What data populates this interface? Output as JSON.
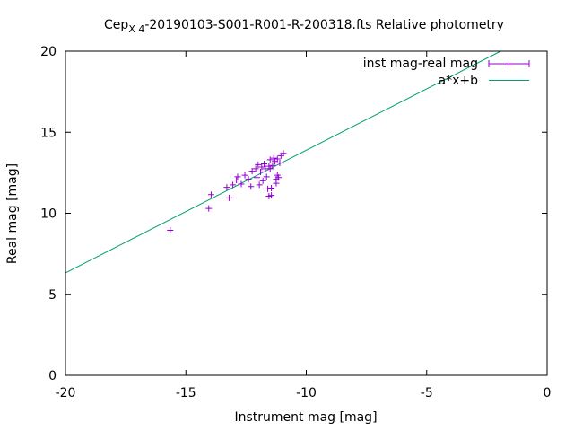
{
  "chart_data": {
    "type": "scatter",
    "title_main": "Cep",
    "title_sub": "X 4",
    "title_rest": "-20190103-S001-R001-R-200318.fts Relative photometry",
    "xlabel": "Instrument mag [mag]",
    "ylabel": "Real mag [mag]",
    "xlim": [
      -20,
      0
    ],
    "ylim": [
      0,
      20
    ],
    "xticks": [
      -20,
      -15,
      -10,
      -5,
      0
    ],
    "yticks": [
      0,
      5,
      10,
      15,
      20
    ],
    "xtick_labels": [
      "-20",
      "-15",
      "-10",
      "-5",
      "0"
    ],
    "ytick_labels": [
      "0",
      "5",
      "10",
      "15",
      "20"
    ],
    "grid": false,
    "legend_position": "top-right",
    "series": [
      {
        "name": "inst mag-real mag",
        "kind": "points",
        "marker": "plus",
        "color": "#9400d3",
        "points": [
          [
            -15.65,
            8.95
          ],
          [
            -14.05,
            10.3
          ],
          [
            -13.95,
            11.15
          ],
          [
            -13.3,
            11.6
          ],
          [
            -13.2,
            10.95
          ],
          [
            -13.05,
            11.75
          ],
          [
            -12.9,
            12.05
          ],
          [
            -12.85,
            12.25
          ],
          [
            -12.7,
            11.8
          ],
          [
            -12.55,
            12.35
          ],
          [
            -12.4,
            12.1
          ],
          [
            -12.3,
            11.65
          ],
          [
            -12.25,
            12.6
          ],
          [
            -12.1,
            12.75
          ],
          [
            -12.05,
            12.2
          ],
          [
            -12.0,
            13.0
          ],
          [
            -11.95,
            11.75
          ],
          [
            -11.9,
            12.55
          ],
          [
            -11.85,
            12.85
          ],
          [
            -11.8,
            12.0
          ],
          [
            -11.75,
            13.05
          ],
          [
            -11.7,
            12.75
          ],
          [
            -11.65,
            12.25
          ],
          [
            -11.6,
            11.5
          ],
          [
            -11.55,
            12.9
          ],
          [
            -11.55,
            11.05
          ],
          [
            -11.5,
            13.3
          ],
          [
            -11.5,
            12.75
          ],
          [
            -11.45,
            11.1
          ],
          [
            -11.45,
            11.55
          ],
          [
            -11.4,
            12.95
          ],
          [
            -11.35,
            13.4
          ],
          [
            -11.3,
            13.2
          ],
          [
            -11.25,
            12.1
          ],
          [
            -11.25,
            11.85
          ],
          [
            -11.2,
            13.35
          ],
          [
            -11.2,
            12.35
          ],
          [
            -11.15,
            12.2
          ],
          [
            -11.1,
            13.1
          ],
          [
            -11.05,
            13.55
          ],
          [
            -10.95,
            13.7
          ]
        ]
      },
      {
        "name": "a*x+b",
        "kind": "line",
        "color": "#009e73",
        "slope": 0.757,
        "intercept": 21.46
      }
    ]
  }
}
